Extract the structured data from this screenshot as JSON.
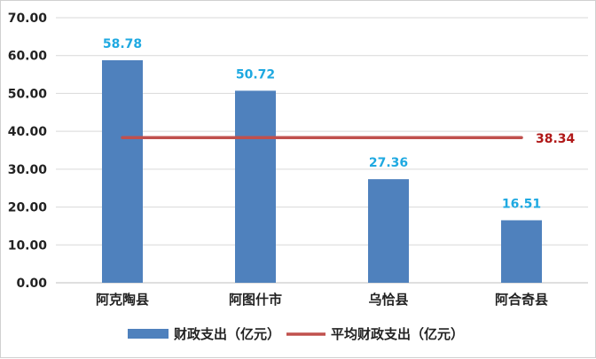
{
  "chart_data": {
    "type": "bar",
    "categories": [
      "阿克陶县",
      "阿图什市",
      "乌恰县",
      "阿合奇县"
    ],
    "series": [
      {
        "name": "财政支出（亿元）",
        "type": "bar",
        "values": [
          58.78,
          50.72,
          27.36,
          16.51
        ],
        "labels": [
          "58.78",
          "50.72",
          "27.36",
          "16.51"
        ],
        "color": "#4F81BD"
      },
      {
        "name": "平均财政支出（亿元）",
        "type": "line",
        "value": 38.34,
        "label": "38.34",
        "color": "#C0504D"
      }
    ],
    "yticks": [
      "0.00",
      "10.00",
      "20.00",
      "30.00",
      "40.00",
      "50.00",
      "60.00",
      "70.00"
    ],
    "ylim": [
      0,
      70
    ],
    "grid": true,
    "legend": "bottom",
    "label_colors": {
      "bar": "#1FA9E1",
      "average": "#B01818"
    }
  }
}
